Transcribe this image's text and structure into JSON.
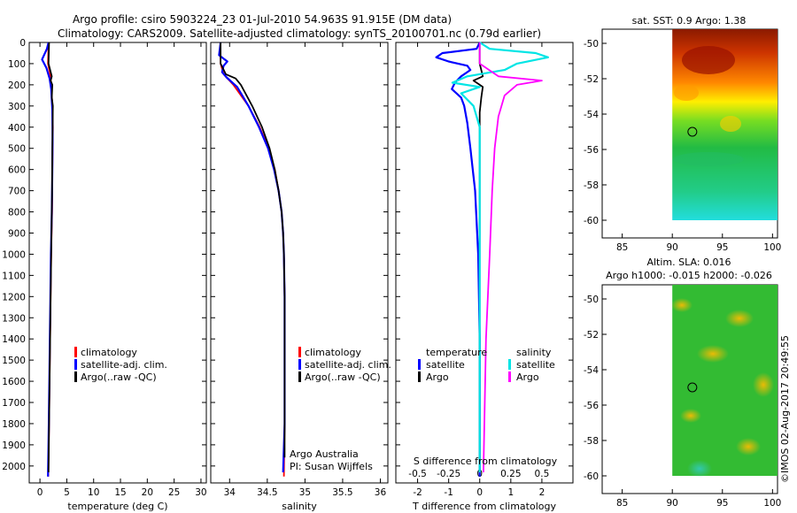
{
  "header": {
    "line1": "Argo profile: csiro 5903224_23 01-Jul-2010 54.963S 91.915E (DM data)",
    "line2": "Climatology: CARS2009. Satellite-adjusted climatology: synTS_20100701.nc (0.79d earlier)"
  },
  "colors": {
    "climatology": "#ff0000",
    "satellite": "#0000ff",
    "argo": "#000000",
    "salinity_satellite": "#00e5e5",
    "salinity_argo": "#ff00ff"
  },
  "chart_data": [
    {
      "type": "line",
      "name": "temperature",
      "xlabel": "temperature (deg C)",
      "ylabel": "",
      "xlim": [
        -2,
        31
      ],
      "ylim": [
        2080,
        0
      ],
      "xticks": [
        0,
        5,
        10,
        15,
        20,
        25,
        30
      ],
      "yticks": [
        0,
        100,
        200,
        300,
        400,
        500,
        600,
        700,
        800,
        900,
        1000,
        1100,
        1200,
        1300,
        1400,
        1500,
        1600,
        1700,
        1800,
        1900,
        2000
      ],
      "legend": [
        "climatology",
        "satellite-adj. clim.",
        "Argo(..raw -QC)"
      ],
      "legend_position": "lower-center",
      "series": [
        {
          "name": "climatology",
          "points": [
            [
              1.6,
              0
            ],
            [
              1.5,
              100
            ],
            [
              1.9,
              150
            ],
            [
              2.1,
              200
            ],
            [
              2.3,
              300
            ],
            [
              2.4,
              400
            ],
            [
              2.35,
              500
            ],
            [
              2.3,
              600
            ],
            [
              2.25,
              800
            ],
            [
              2.1,
              1000
            ],
            [
              1.9,
              1400
            ],
            [
              1.7,
              1800
            ],
            [
              1.55,
              2050
            ]
          ]
        },
        {
          "name": "satellite-adj. clim.",
          "points": [
            [
              1.6,
              0
            ],
            [
              1.3,
              30
            ],
            [
              0.4,
              80
            ],
            [
              1.2,
              120
            ],
            [
              1.8,
              170
            ],
            [
              2.1,
              220
            ],
            [
              2.3,
              320
            ],
            [
              2.35,
              450
            ],
            [
              2.3,
              600
            ],
            [
              2.2,
              800
            ],
            [
              2.05,
              1000
            ],
            [
              1.85,
              1400
            ],
            [
              1.65,
              1800
            ],
            [
              1.5,
              2050
            ]
          ]
        },
        {
          "name": "Argo(..raw -QC)",
          "points": [
            [
              1.7,
              0
            ],
            [
              1.6,
              100
            ],
            [
              2.2,
              160
            ],
            [
              2.0,
              180
            ],
            [
              2.3,
              200
            ],
            [
              2.2,
              260
            ],
            [
              2.4,
              300
            ],
            [
              2.35,
              400
            ],
            [
              2.3,
              500
            ],
            [
              2.25,
              700
            ],
            [
              2.1,
              1000
            ],
            [
              1.95,
              1300
            ],
            [
              1.75,
              1700
            ],
            [
              1.6,
              2030
            ]
          ]
        }
      ]
    },
    {
      "type": "line",
      "name": "salinity",
      "xlabel": "salinity",
      "ylabel": "",
      "xlim": [
        33.75,
        36.1
      ],
      "ylim": [
        2080,
        0
      ],
      "xticks": [
        34,
        34.5,
        35,
        35.5,
        36
      ],
      "legend": [
        "climatology",
        "satellite-adj. clim.",
        "Argo(..raw -QC)"
      ],
      "legend_position": "lower-right",
      "annotation": [
        "Argo Australia",
        "PI: Susan Wijffels"
      ],
      "series": [
        {
          "name": "climatology",
          "points": [
            [
              33.88,
              0
            ],
            [
              33.88,
              100
            ],
            [
              33.92,
              150
            ],
            [
              34.05,
              200
            ],
            [
              34.25,
              300
            ],
            [
              34.4,
              400
            ],
            [
              34.52,
              500
            ],
            [
              34.6,
              600
            ],
            [
              34.65,
              700
            ],
            [
              34.69,
              800
            ],
            [
              34.71,
              900
            ],
            [
              34.72,
              1000
            ],
            [
              34.73,
              1200
            ],
            [
              34.73,
              1500
            ],
            [
              34.73,
              1800
            ],
            [
              34.72,
              2050
            ]
          ]
        },
        {
          "name": "satellite-adj. clim.",
          "points": [
            [
              33.88,
              0
            ],
            [
              33.86,
              60
            ],
            [
              33.97,
              90
            ],
            [
              33.92,
              110
            ],
            [
              33.9,
              140
            ],
            [
              33.96,
              165
            ],
            [
              34.1,
              210
            ],
            [
              34.25,
              300
            ],
            [
              34.39,
              400
            ],
            [
              34.51,
              500
            ],
            [
              34.59,
              600
            ],
            [
              34.65,
              700
            ],
            [
              34.69,
              800
            ],
            [
              34.71,
              900
            ],
            [
              34.72,
              1000
            ],
            [
              34.73,
              1200
            ],
            [
              34.73,
              1600
            ],
            [
              34.73,
              1800
            ],
            [
              34.71,
              2030
            ]
          ]
        },
        {
          "name": "Argo(..raw -QC)",
          "points": [
            [
              33.88,
              0
            ],
            [
              33.88,
              100
            ],
            [
              33.95,
              150
            ],
            [
              34.08,
              170
            ],
            [
              34.15,
              200
            ],
            [
              34.3,
              300
            ],
            [
              34.43,
              400
            ],
            [
              34.53,
              500
            ],
            [
              34.6,
              600
            ],
            [
              34.65,
              700
            ],
            [
              34.69,
              800
            ],
            [
              34.71,
              900
            ],
            [
              34.72,
              1000
            ],
            [
              34.73,
              1200
            ],
            [
              34.73,
              1500
            ],
            [
              34.73,
              1800
            ],
            [
              34.73,
              1960
            ]
          ]
        }
      ]
    },
    {
      "type": "line",
      "name": "difference",
      "xlabel": "T difference from climatology",
      "xlabel_top": "S difference from climatology",
      "ylabel": "",
      "xlim": [
        -2.7,
        3.0
      ],
      "ylim": [
        2080,
        0
      ],
      "xticks": [
        -2,
        -1,
        0,
        1,
        2
      ],
      "s_ticks": [
        -0.5,
        -0.25,
        0,
        0.25,
        0.5
      ],
      "legend_groups": [
        "temperature",
        "salinity"
      ],
      "legend": [
        "satellite",
        "Argo",
        "satellite",
        "Argo"
      ],
      "series": [
        {
          "name": "temperature satellite",
          "points": [
            [
              0,
              0
            ],
            [
              -0.1,
              30
            ],
            [
              -1.2,
              50
            ],
            [
              -1.4,
              70
            ],
            [
              -1.0,
              90
            ],
            [
              -0.4,
              110
            ],
            [
              -0.3,
              130
            ],
            [
              -0.6,
              160
            ],
            [
              -0.8,
              190
            ],
            [
              -0.9,
              220
            ],
            [
              -0.6,
              260
            ],
            [
              -0.5,
              300
            ],
            [
              -0.4,
              380
            ],
            [
              -0.3,
              500
            ],
            [
              -0.15,
              700
            ],
            [
              -0.05,
              1000
            ],
            [
              0,
              1400
            ],
            [
              0,
              2050
            ]
          ]
        },
        {
          "name": "temperature Argo",
          "points": [
            [
              0,
              0
            ],
            [
              0,
              100
            ],
            [
              0.1,
              160
            ],
            [
              -0.2,
              180
            ],
            [
              0.1,
              210
            ],
            [
              0.05,
              260
            ],
            [
              0,
              330
            ],
            [
              0,
              700
            ],
            [
              0,
              1400
            ],
            [
              0,
              2030
            ]
          ]
        },
        {
          "name": "salinity satellite",
          "points": [
            [
              0,
              0
            ],
            [
              0.08,
              30
            ],
            [
              0.45,
              50
            ],
            [
              0.55,
              70
            ],
            [
              0.3,
              100
            ],
            [
              0.2,
              130
            ],
            [
              -0.1,
              160
            ],
            [
              -0.22,
              190
            ],
            [
              0,
              210
            ],
            [
              -0.15,
              240
            ],
            [
              -0.05,
              300
            ],
            [
              0,
              400
            ],
            [
              0,
              700
            ],
            [
              0,
              1400
            ],
            [
              0,
              2030
            ]
          ]
        },
        {
          "name": "salinity Argo",
          "points": [
            [
              0,
              0
            ],
            [
              0,
              100
            ],
            [
              0.15,
              160
            ],
            [
              0.5,
              180
            ],
            [
              0.3,
              200
            ],
            [
              0.2,
              250
            ],
            [
              0.15,
              350
            ],
            [
              0.12,
              500
            ],
            [
              0.1,
              700
            ],
            [
              0.08,
              1000
            ],
            [
              0.05,
              1400
            ],
            [
              0.03,
              2030
            ]
          ]
        }
      ]
    },
    {
      "type": "heatmap",
      "name": "sst-map",
      "title": "sat. SST: 0.9 Argo: 1.38",
      "xticks": [
        85,
        90,
        95,
        100
      ],
      "yticks": [
        -50,
        -52,
        -54,
        -56,
        -58,
        -60
      ],
      "xlim": [
        83,
        100.5
      ],
      "ylim": [
        -61,
        -49.2
      ],
      "data_extent_lon": [
        90,
        100.5
      ],
      "data_extent_lat": [
        -60,
        -49.2
      ],
      "marker": [
        92,
        -55
      ],
      "gradient_stops": [
        "#8b1a00",
        "#cc3300",
        "#ff8800",
        "#ffee00",
        "#77dd22",
        "#22bb44",
        "#22cc88",
        "#22dddd"
      ]
    },
    {
      "type": "heatmap",
      "name": "sla-map",
      "title": [
        "Altim. SLA: 0.016",
        "Argo h1000: -0.015 h2000: -0.026"
      ],
      "xticks": [
        85,
        90,
        95,
        100
      ],
      "yticks": [
        -50,
        -52,
        -54,
        -56,
        -58,
        -60
      ],
      "xlim": [
        83,
        100.5
      ],
      "ylim": [
        -61,
        -49.2
      ],
      "data_extent_lon": [
        90,
        100.5
      ],
      "data_extent_lat": [
        -60,
        -49.2
      ],
      "marker": [
        92,
        -55
      ],
      "gradient_stops": [
        "#22bb22",
        "#55cc22",
        "#aadd22",
        "#ffcc00",
        "#33cc99"
      ]
    }
  ],
  "stamp": "©IMOS 02-Aug-2017 20:49:55"
}
